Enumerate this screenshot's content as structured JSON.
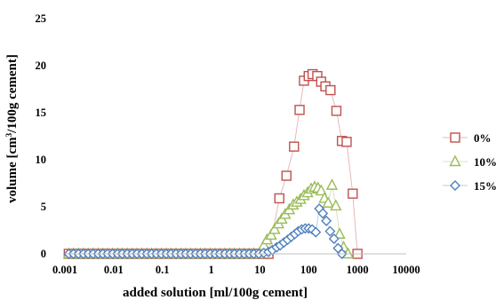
{
  "chart_data": {
    "type": "scatter",
    "title": "",
    "xlabel": "added solution [ml/100g cement]",
    "ylabel_prefix": "volume [cm",
    "ylabel_sup": "3",
    "ylabel_suffix": "/100g cement]",
    "x_scale": "log",
    "xlim": [
      0.001,
      10000
    ],
    "ylim": [
      0,
      25
    ],
    "x_ticks": [
      "0.001",
      "0.01",
      "0.1",
      "1",
      "10",
      "100",
      "1000",
      "10000"
    ],
    "y_ticks": [
      "0",
      "5",
      "10",
      "15",
      "20",
      "25"
    ],
    "grid": false,
    "legend": "right",
    "series": [
      {
        "name": "0%",
        "marker": "square",
        "color": "#c0504d",
        "line_color": "#e6b9b8",
        "x": [
          0.0012,
          0.0015,
          0.0019,
          0.0024,
          0.003,
          0.0038,
          0.0048,
          0.006,
          0.0075,
          0.0095,
          0.012,
          0.015,
          0.019,
          0.024,
          0.03,
          0.038,
          0.048,
          0.06,
          0.075,
          0.095,
          0.12,
          0.15,
          0.19,
          0.24,
          0.3,
          0.38,
          0.48,
          0.6,
          0.75,
          0.95,
          1.2,
          1.5,
          1.9,
          2.4,
          3,
          3.8,
          4.8,
          6,
          7.5,
          9.5,
          12,
          15,
          25,
          35,
          50,
          65,
          80,
          100,
          120,
          150,
          180,
          220,
          280,
          370,
          480,
          600,
          800,
          1000
        ],
        "y": [
          0,
          0,
          0,
          0,
          0,
          0,
          0,
          0,
          0,
          0,
          0,
          0,
          0,
          0,
          0,
          0,
          0,
          0,
          0,
          0,
          0,
          0,
          0,
          0,
          0,
          0,
          0,
          0,
          0,
          0,
          0,
          0,
          0,
          0,
          0,
          0,
          0,
          0,
          0,
          0,
          0,
          0,
          5.9,
          8.3,
          11.4,
          15.3,
          18.4,
          18.9,
          19.1,
          18.9,
          18.3,
          17.8,
          17.4,
          15.2,
          12.0,
          11.9,
          6.4,
          0
        ]
      },
      {
        "name": "10%",
        "marker": "triangle",
        "color": "#9bbb59",
        "line_color": "#d7e4bd",
        "x": [
          0.0012,
          0.0015,
          0.0019,
          0.0024,
          0.003,
          0.0038,
          0.0048,
          0.006,
          0.0075,
          0.0095,
          0.012,
          0.015,
          0.019,
          0.024,
          0.03,
          0.038,
          0.048,
          0.06,
          0.075,
          0.095,
          0.12,
          0.15,
          0.19,
          0.24,
          0.3,
          0.38,
          0.48,
          0.6,
          0.75,
          0.95,
          1.2,
          1.5,
          1.9,
          2.4,
          3,
          3.8,
          4.8,
          6,
          7.5,
          9.5,
          12,
          14,
          17,
          20,
          24,
          28,
          33,
          40,
          48,
          57,
          68,
          80,
          95,
          112,
          132,
          155,
          180,
          210,
          250,
          300,
          360,
          430,
          520,
          640
        ],
        "y": [
          0,
          0,
          0,
          0,
          0,
          0,
          0,
          0,
          0,
          0,
          0,
          0,
          0,
          0,
          0,
          0,
          0,
          0,
          0,
          0,
          0,
          0,
          0,
          0,
          0,
          0,
          0,
          0,
          0,
          0,
          0,
          0,
          0,
          0,
          0,
          0,
          0,
          0,
          0,
          0,
          0.9,
          1.5,
          2.0,
          2.6,
          3.2,
          3.7,
          4.2,
          4.7,
          5.2,
          5.5,
          5.8,
          6.2,
          6.5,
          6.9,
          7.1,
          7.0,
          6.7,
          5.9,
          5.4,
          7.3,
          5.1,
          2.1,
          0.7,
          0
        ]
      },
      {
        "name": "15%",
        "marker": "diamond",
        "color": "#4f81bd",
        "line_color": "#b9cde5",
        "x": [
          0.0012,
          0.0015,
          0.0019,
          0.0024,
          0.003,
          0.0038,
          0.0048,
          0.006,
          0.0075,
          0.0095,
          0.012,
          0.015,
          0.019,
          0.024,
          0.03,
          0.038,
          0.048,
          0.06,
          0.075,
          0.095,
          0.12,
          0.15,
          0.19,
          0.24,
          0.3,
          0.38,
          0.48,
          0.6,
          0.75,
          0.95,
          1.2,
          1.5,
          1.9,
          2.4,
          3,
          3.8,
          4.8,
          6,
          7.5,
          9.5,
          12,
          15,
          18,
          22,
          26,
          31,
          37,
          44,
          52,
          61,
          72,
          85,
          100,
          118,
          140,
          165,
          195,
          230,
          275,
          330,
          400,
          480
        ],
        "y": [
          0,
          0,
          0,
          0,
          0,
          0,
          0,
          0,
          0,
          0,
          0,
          0,
          0,
          0,
          0,
          0,
          0,
          0,
          0,
          0,
          0,
          0,
          0,
          0,
          0,
          0,
          0,
          0,
          0,
          0,
          0,
          0,
          0,
          0,
          0,
          0,
          0,
          0,
          0,
          0,
          0.1,
          0.2,
          0.4,
          0.7,
          0.9,
          1.2,
          1.5,
          1.8,
          2.1,
          2.4,
          2.6,
          2.7,
          2.7,
          2.6,
          2.3,
          4.8,
          4.3,
          3.5,
          2.4,
          1.6,
          0.6,
          0
        ]
      }
    ]
  }
}
